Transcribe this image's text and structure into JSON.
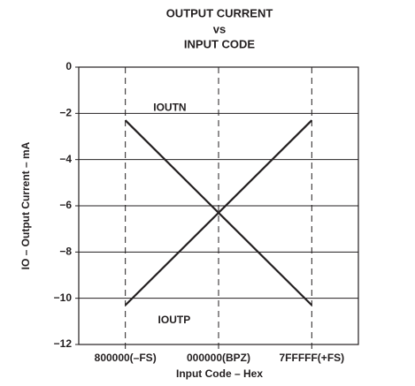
{
  "chart_data": {
    "type": "line",
    "title": [
      "OUTPUT CURRENT",
      "vs",
      "INPUT CODE"
    ],
    "x_label": "Input Code – Hex",
    "y_label": "IO – Output Current – mA",
    "categories": [
      "800000(–FS)",
      "000000(BPZ)",
      "7FFFFF(+FS)"
    ],
    "series": [
      {
        "name": "IOUTN",
        "color": "#231f20",
        "values": [
          -2.3,
          -6.3,
          -10.3
        ]
      },
      {
        "name": "IOUTP",
        "color": "#231f20",
        "values": [
          -10.3,
          -6.3,
          -2.3
        ]
      }
    ],
    "ylim": [
      0,
      -12
    ],
    "yticks": [
      0,
      {
        "value": -2,
        "label": "−2"
      },
      {
        "value": -4,
        "label": "−4"
      },
      {
        "value": -6,
        "label": "−6"
      },
      {
        "value": -8,
        "label": "−8"
      },
      {
        "value": -10,
        "label": "−10"
      },
      {
        "value": -12,
        "label": "−12"
      }
    ],
    "grid": true
  }
}
